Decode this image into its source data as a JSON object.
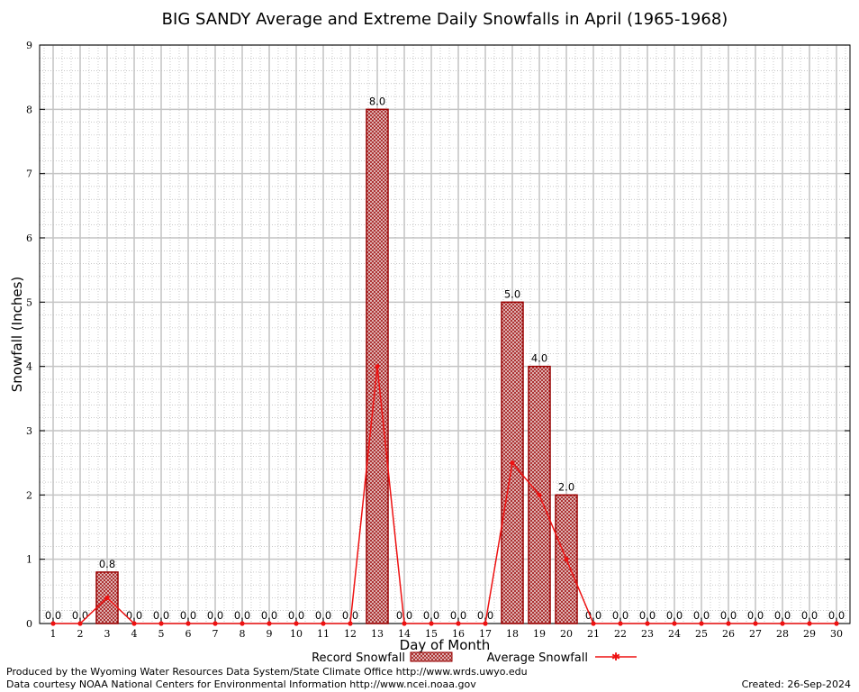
{
  "chart_data": {
    "type": "bar",
    "title": "BIG SANDY Average and Extreme Daily Snowfalls in April (1965-1968)",
    "xlabel": "Day of Month",
    "ylabel": "Snowfall (Inches)",
    "ylim": [
      0,
      9
    ],
    "yticks": [
      "0",
      "1",
      "2",
      "3",
      "4",
      "5",
      "6",
      "7",
      "8",
      "9"
    ],
    "categories": [
      "1",
      "2",
      "3",
      "4",
      "5",
      "6",
      "7",
      "8",
      "9",
      "10",
      "11",
      "12",
      "13",
      "14",
      "15",
      "16",
      "17",
      "18",
      "19",
      "20",
      "21",
      "22",
      "23",
      "24",
      "25",
      "26",
      "27",
      "28",
      "29",
      "30"
    ],
    "series": [
      {
        "name": "Record Snowfall",
        "kind": "bar",
        "color": "#990000",
        "values": [
          0,
          0,
          0.8,
          0,
          0,
          0,
          0,
          0,
          0,
          0,
          0,
          0,
          8,
          0,
          0,
          0,
          0,
          5,
          4,
          2,
          0,
          0,
          0,
          0,
          0,
          0,
          0,
          0,
          0,
          0
        ],
        "labels": [
          "0.0",
          "0.0",
          "0.8",
          "0.0",
          "0.0",
          "0.0",
          "0.0",
          "0.0",
          "0.0",
          "0.0",
          "0.0",
          "0.0",
          "8.0",
          "0.0",
          "0.0",
          "0.0",
          "0.0",
          "5.0",
          "4.0",
          "2.0",
          "0.0",
          "0.0",
          "0.0",
          "0.0",
          "0.0",
          "0.0",
          "0.0",
          "0.0",
          "0.0",
          "0.0"
        ]
      },
      {
        "name": "Average Snowfall",
        "kind": "line",
        "color": "#ee1111",
        "values": [
          0,
          0,
          0.4,
          0,
          0,
          0,
          0,
          0,
          0,
          0,
          0,
          0,
          4,
          0,
          0,
          0,
          0,
          2.5,
          2,
          1,
          0,
          0,
          0,
          0,
          0,
          0,
          0,
          0,
          0,
          0
        ]
      }
    ],
    "grid": true,
    "legend_position": "bottom"
  },
  "footer": {
    "produced_by": "Produced by the Wyoming Water Resources Data System/State Climate Office http://www.wrds.uwyo.edu",
    "courtesy": "Data courtesy NOAA National Centers for Environmental Information http://www.ncei.noaa.gov",
    "created": "Created: 26-Sep-2024"
  }
}
